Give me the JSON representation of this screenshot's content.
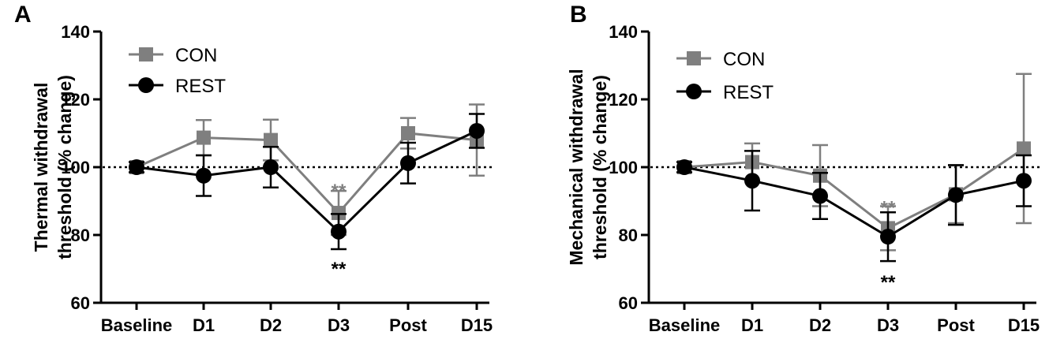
{
  "colors": {
    "con": "#7f7f7f",
    "rest": "#000000",
    "axis": "#000000"
  },
  "chart_data": [
    {
      "panel_label": "A",
      "type": "line",
      "categories": [
        "Baseline",
        "D1",
        "D2",
        "D3",
        "Post",
        "D15"
      ],
      "ylabel_line1": "Thermal withdrawal",
      "ylabel_line2": "threshold  (% change)",
      "ylim": [
        60,
        140
      ],
      "yticks": [
        "60",
        "80",
        "100",
        "120",
        "140"
      ],
      "reference_line": 100,
      "legend_position": "top-left",
      "series": [
        {
          "name": "CON",
          "key": "con",
          "marker": "square",
          "values": [
            100,
            108.7,
            108.0,
            86.5,
            110.0,
            108.0
          ],
          "errors": [
            1.5,
            5.2,
            6.0,
            6.5,
            4.5,
            10.5
          ]
        },
        {
          "name": "REST",
          "key": "rest",
          "marker": "circle",
          "values": [
            100,
            97.5,
            100,
            81.0,
            101.2,
            110.7
          ],
          "errors": [
            1.5,
            6.0,
            6.0,
            5.2,
            6.0,
            5.0
          ]
        }
      ],
      "annotations": [
        {
          "text": "**",
          "category": "D3",
          "y": 93.5,
          "series": "con"
        },
        {
          "text": "**",
          "category": "D3",
          "y": 70.5,
          "series": "rest"
        }
      ]
    },
    {
      "panel_label": "B",
      "type": "line",
      "categories": [
        "Baseline",
        "D1",
        "D2",
        "D3",
        "Post",
        "D15"
      ],
      "ylabel_line1": "Mechanical withdrawal",
      "ylabel_line2": "threshold  (% change)",
      "ylim": [
        60,
        140
      ],
      "yticks": [
        "60",
        "80",
        "100",
        "120",
        "140"
      ],
      "reference_line": 100,
      "legend_position": "top-left",
      "series": [
        {
          "name": "CON",
          "key": "con",
          "marker": "square",
          "values": [
            100,
            101.5,
            97.5,
            82.0,
            92.0,
            105.5
          ],
          "errors": [
            1.5,
            5.5,
            9.0,
            6.5,
            8.5,
            22.0
          ]
        },
        {
          "name": "REST",
          "key": "rest",
          "marker": "circle",
          "values": [
            100,
            96.0,
            91.5,
            79.5,
            91.8,
            96.0
          ],
          "errors": [
            1.5,
            8.8,
            6.8,
            7.2,
            8.8,
            7.5
          ]
        }
      ],
      "annotations": [
        {
          "text": "**",
          "category": "D3",
          "y": 88.5,
          "series": "con"
        },
        {
          "text": "**",
          "category": "D3",
          "y": 66.5,
          "series": "rest"
        }
      ]
    }
  ]
}
